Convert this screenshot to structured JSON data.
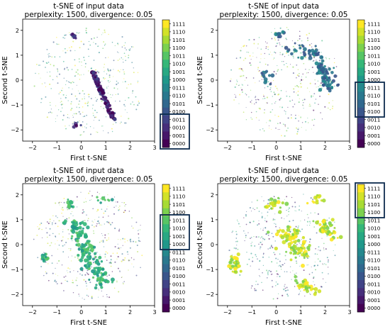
{
  "colors": {
    "viridis_stops": [
      "#440154",
      "#482878",
      "#3e4a89",
      "#31688e",
      "#26828e",
      "#1f9e89",
      "#35b779",
      "#6ece58",
      "#b5de2b",
      "#fde725"
    ],
    "highlight_box": "#0d2b4e"
  },
  "chart_data": [
    {
      "type": "scatter",
      "title": "t-SNE of input data",
      "subtitle": "perplexity: 1500, divergence: 0.05",
      "xlabel": "First t-SNE",
      "ylabel": "Second t-SNE",
      "xlim": [
        -2.4,
        3.0
      ],
      "ylim": [
        -2.45,
        2.45
      ],
      "xticks": [
        -2,
        -1,
        0,
        1,
        2,
        3
      ],
      "yticks": [
        -2,
        -1,
        0,
        1,
        2
      ],
      "colorbar_labels": [
        "1111",
        "1110",
        "1101",
        "1100",
        "1011",
        "1010",
        "1001",
        "1000",
        "0111",
        "0110",
        "0101",
        "0100",
        "0011",
        "0010",
        "0001",
        "0000"
      ],
      "highlight_group": "0000–0011",
      "highlight_labels": [
        "0011",
        "0010",
        "0001",
        "0000"
      ],
      "highlight_clusters": [
        {
          "x": 0.45,
          "y": 0.35,
          "dx": 0.9,
          "dy": -1.95,
          "n": 120,
          "sx": 0.05,
          "sy": 0.05
        },
        {
          "x": -0.35,
          "y": 1.8,
          "dx": 0.1,
          "dy": -0.1,
          "n": 10,
          "sx": 0.04,
          "sy": 0.05
        },
        {
          "x": -0.4,
          "y": -1.8,
          "dx": 0.3,
          "dy": 0.0,
          "n": 5,
          "sx": 0.06,
          "sy": 0.03
        }
      ]
    },
    {
      "type": "scatter",
      "title": "t-SNE of input data",
      "subtitle": "perplexity: 1500, divergence: 0.05",
      "xlabel": "First t-SNE",
      "ylabel": "Second t-SNE",
      "xlim": [
        -2.4,
        3.0
      ],
      "ylim": [
        -2.45,
        2.45
      ],
      "xticks": [
        -2,
        -1,
        0,
        1,
        2,
        3
      ],
      "yticks": [
        -2,
        -1,
        0,
        1,
        2
      ],
      "colorbar_labels": [
        "1111",
        "1110",
        "1101",
        "1100",
        "1011",
        "1010",
        "1001",
        "1000",
        "0111",
        "0110",
        "0101",
        "0100",
        "0011",
        "0010",
        "0001",
        "0000"
      ],
      "highlight_group": "0100–0111",
      "highlight_labels": [
        "0111",
        "0110",
        "0101",
        "0100"
      ],
      "highlight_clusters": [
        {
          "x": 1.8,
          "y": 0.6,
          "dx": 0.4,
          "dy": -1.0,
          "n": 70,
          "sx": 0.2,
          "sy": 0.12
        },
        {
          "x": 0.6,
          "y": 1.2,
          "dx": 1.2,
          "dy": -0.2,
          "n": 40,
          "sx": 0.15,
          "sy": 0.12
        },
        {
          "x": 0.0,
          "y": 1.8,
          "dx": 0.3,
          "dy": 0.1,
          "n": 10,
          "sx": 0.1,
          "sy": 0.06
        },
        {
          "x": -0.6,
          "y": 0.5,
          "dx": 0.3,
          "dy": -0.8,
          "n": 12,
          "sx": 0.1,
          "sy": 0.1
        }
      ]
    },
    {
      "type": "scatter",
      "title": "t-SNE of input data",
      "subtitle": "perplexity: 1500, divergence: 0.05",
      "xlabel": "First t-SNE",
      "ylabel": "Second t-SNE",
      "xlim": [
        -2.4,
        3.0
      ],
      "ylim": [
        -2.45,
        2.45
      ],
      "xticks": [
        -2,
        -1,
        0,
        1,
        2,
        3
      ],
      "yticks": [
        -2,
        -1,
        0,
        1,
        2
      ],
      "colorbar_labels": [
        "1111",
        "1110",
        "1101",
        "1100",
        "1011",
        "1010",
        "1001",
        "1000",
        "0111",
        "0110",
        "0101",
        "0100",
        "0011",
        "0010",
        "0001",
        "0000"
      ],
      "highlight_group": "1000–1011",
      "highlight_labels": [
        "1011",
        "1010",
        "1001",
        "1000"
      ],
      "highlight_clusters": [
        {
          "x": -0.4,
          "y": 1.0,
          "dx": 1.3,
          "dy": -2.6,
          "n": 160,
          "sx": 0.2,
          "sy": 0.1
        },
        {
          "x": -0.5,
          "y": 1.7,
          "dx": 0.1,
          "dy": -0.2,
          "n": 10,
          "sx": 0.05,
          "sy": 0.05
        },
        {
          "x": -1.6,
          "y": -0.4,
          "dx": 0.2,
          "dy": -0.2,
          "n": 12,
          "sx": 0.08,
          "sy": 0.08
        },
        {
          "x": 0.6,
          "y": 1.8,
          "dx": 0.6,
          "dy": 0.0,
          "n": 8,
          "sx": 0.08,
          "sy": 0.05
        }
      ]
    },
    {
      "type": "scatter",
      "title": "t-SNE of input data",
      "subtitle": "perplexity: 1500, divergence: 0.05",
      "xlabel": "First t-SNE",
      "ylabel": "Second t-SNE",
      "xlim": [
        -2.4,
        3.0
      ],
      "ylim": [
        -2.45,
        2.45
      ],
      "xticks": [
        -2,
        -1,
        0,
        1,
        2,
        3
      ],
      "yticks": [
        -2,
        -1,
        0,
        1,
        2
      ],
      "colorbar_labels": [
        "1111",
        "1110",
        "1101",
        "1100",
        "1011",
        "1010",
        "1001",
        "1000",
        "0111",
        "0110",
        "0101",
        "0100",
        "0011",
        "0010",
        "0001",
        "0000"
      ],
      "highlight_group": "1100–1111",
      "highlight_labels": [
        "1111",
        "1110",
        "1101",
        "1100"
      ],
      "highlight_clusters": [
        {
          "x": -1.8,
          "y": -0.6,
          "dx": 0.2,
          "dy": -0.4,
          "n": 40,
          "sx": 0.12,
          "sy": 0.12
        },
        {
          "x": 1.8,
          "y": 0.9,
          "dx": 0.5,
          "dy": -0.6,
          "n": 50,
          "sx": 0.15,
          "sy": 0.12
        },
        {
          "x": -0.3,
          "y": 1.5,
          "dx": 0.5,
          "dy": 0.3,
          "n": 25,
          "sx": 0.15,
          "sy": 0.1
        },
        {
          "x": 0.3,
          "y": 0.6,
          "dx": 0.8,
          "dy": -1.2,
          "n": 90,
          "sx": 0.3,
          "sy": 0.15
        },
        {
          "x": 0.9,
          "y": -1.5,
          "dx": 0.7,
          "dy": -0.4,
          "n": 30,
          "sx": 0.1,
          "sy": 0.1
        },
        {
          "x": 1.4,
          "y": 1.7,
          "dx": 0.4,
          "dy": 0.2,
          "n": 15,
          "sx": 0.1,
          "sy": 0.08
        }
      ]
    }
  ]
}
